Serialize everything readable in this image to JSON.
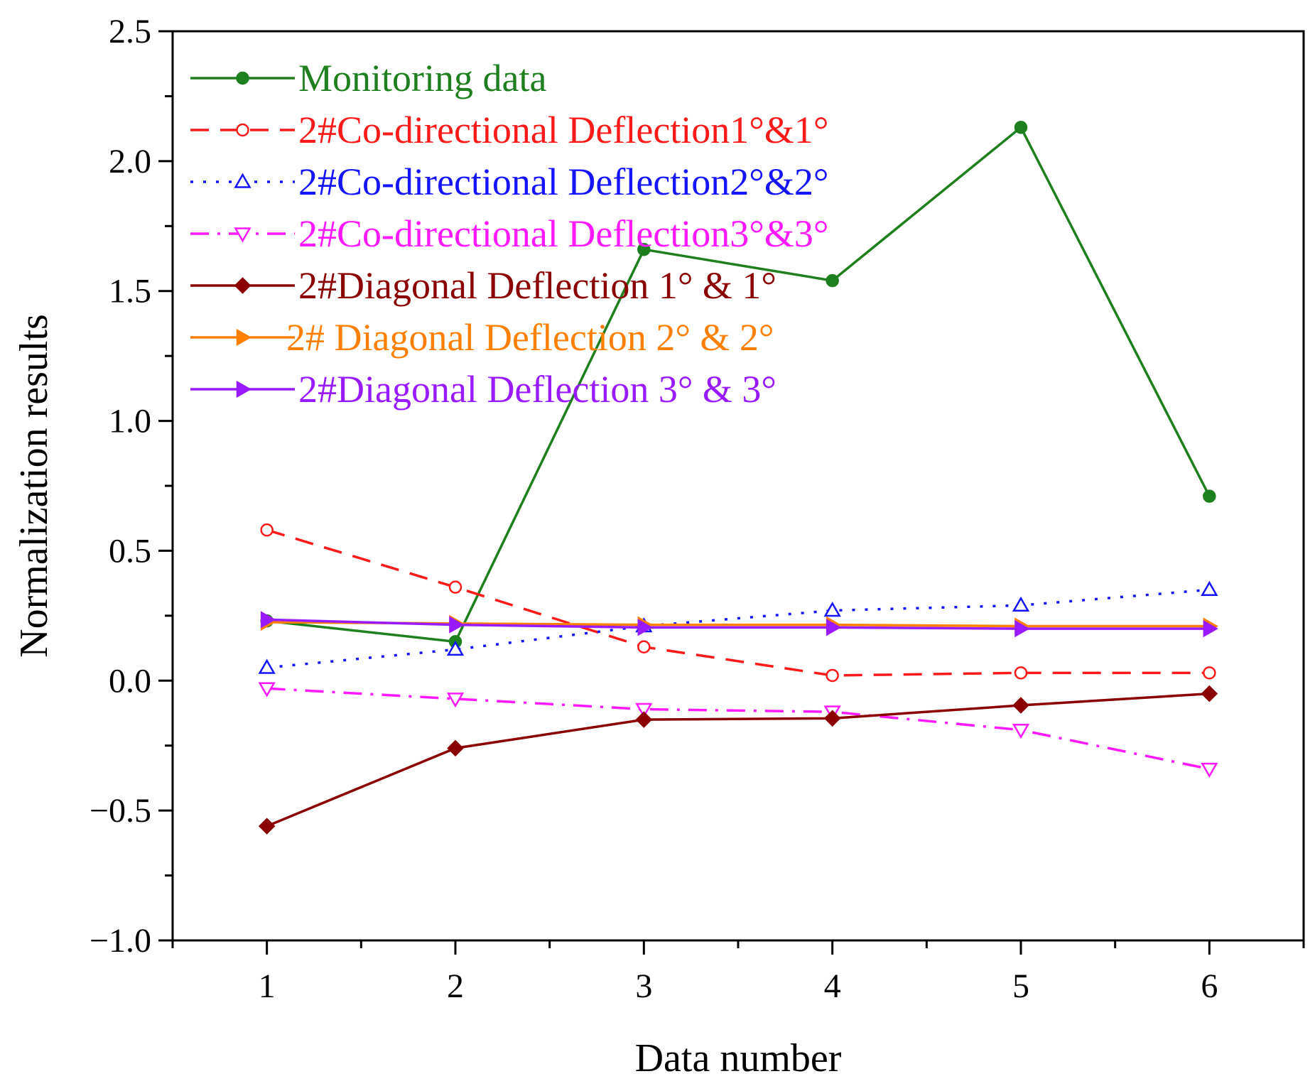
{
  "chart_data": {
    "type": "line",
    "title": "",
    "xlabel": "Data number",
    "ylabel": "Normalization results",
    "xlim": [
      0.5,
      6.5
    ],
    "ylim": [
      -1.0,
      2.5
    ],
    "x_ticks": [
      "1",
      "2",
      "3",
      "4",
      "5",
      "6"
    ],
    "y_ticks": [
      "−1.0",
      "−0.5",
      "0.0",
      "0.5",
      "1.0",
      "1.5",
      "2.0",
      "2.5"
    ],
    "legend_position": "top-left",
    "x": [
      1,
      2,
      3,
      4,
      5,
      6
    ],
    "series": [
      {
        "name": "Monitoring data",
        "color": "#1e7f1e",
        "line_style": "solid",
        "marker": "filled-circle",
        "values": [
          0.23,
          0.15,
          1.66,
          1.54,
          2.13,
          0.71
        ]
      },
      {
        "name": "2#Co-directional Deflection1°&1°",
        "color": "#ff1a1a",
        "line_style": "dashed",
        "marker": "open-circle",
        "values": [
          0.58,
          0.36,
          0.13,
          0.02,
          0.03,
          0.03
        ]
      },
      {
        "name": "2#Co-directional Deflection2°&2°",
        "color": "#1414ff",
        "line_style": "dotted",
        "marker": "open-triangle-up",
        "values": [
          0.05,
          0.12,
          0.21,
          0.27,
          0.29,
          0.35
        ]
      },
      {
        "name": "2#Co-directional Deflection3°&3°",
        "color": "#ff19ff",
        "line_style": "dash-dot",
        "marker": "open-triangle-down",
        "values": [
          -0.03,
          -0.07,
          -0.11,
          -0.12,
          -0.19,
          -0.34
        ]
      },
      {
        "name": "2#Diagonal Deflection 1° & 1°",
        "color": "#8b0000",
        "line_style": "solid",
        "marker": "filled-diamond",
        "values": [
          -0.56,
          -0.26,
          -0.15,
          -0.145,
          -0.095,
          -0.05
        ]
      },
      {
        "name": "2# Diagonal Deflection 2° & 2°",
        "color": "#ff8000",
        "line_style": "solid",
        "marker": "filled-triangle-right",
        "values": [
          0.225,
          0.22,
          0.215,
          0.215,
          0.21,
          0.21
        ]
      },
      {
        "name": "2#Diagonal Deflection 3° & 3°",
        "color": "#9a1aff",
        "line_style": "solid",
        "marker": "filled-triangle-right",
        "values": [
          0.235,
          0.215,
          0.205,
          0.205,
          0.2,
          0.2
        ]
      }
    ]
  }
}
